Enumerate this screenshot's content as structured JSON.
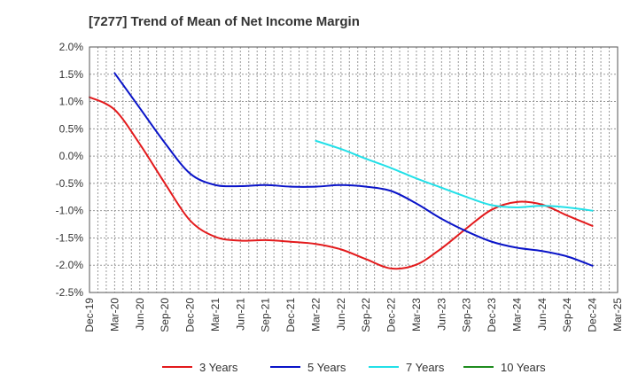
{
  "chart_data": {
    "type": "line",
    "title": "[7277]  Trend of Mean of Net Income Margin",
    "xlabel": "",
    "ylabel": "",
    "y_unit": "%",
    "ylim": [
      -2.5,
      2.0
    ],
    "y_ticks": [
      "2.0%",
      "1.5%",
      "1.0%",
      "0.5%",
      "0.0%",
      "-0.5%",
      "-1.0%",
      "-1.5%",
      "-2.0%",
      "-2.5%"
    ],
    "x_ticks": [
      "Dec-19",
      "Mar-20",
      "Jun-20",
      "Sep-20",
      "Dec-20",
      "Mar-21",
      "Jun-21",
      "Sep-21",
      "Dec-21",
      "Mar-22",
      "Jun-22",
      "Sep-22",
      "Dec-22",
      "Mar-23",
      "Jun-23",
      "Sep-23",
      "Dec-23",
      "Mar-24",
      "Jun-24",
      "Sep-24",
      "Dec-24",
      "Mar-25"
    ],
    "grid": true,
    "legend_position": "bottom",
    "series": [
      {
        "name": "3 Years",
        "color": "#e31a1c",
        "x": [
          "Dec-19",
          "Mar-20",
          "Jun-20",
          "Sep-20",
          "Dec-20",
          "Mar-21",
          "Jun-21",
          "Sep-21",
          "Dec-21",
          "Mar-22",
          "Jun-22",
          "Sep-22",
          "Dec-22",
          "Mar-23",
          "Jun-23",
          "Sep-23",
          "Dec-23",
          "Mar-24",
          "Jun-24",
          "Sep-24",
          "Dec-24"
        ],
        "values": [
          1.08,
          0.85,
          0.22,
          -0.5,
          -1.18,
          -1.48,
          -1.55,
          -1.54,
          -1.57,
          -1.61,
          -1.71,
          -1.89,
          -2.06,
          -1.99,
          -1.69,
          -1.32,
          -0.98,
          -0.84,
          -0.89,
          -1.09,
          -1.28
        ]
      },
      {
        "name": "5 Years",
        "color": "#0a14c8",
        "x": [
          "Mar-20",
          "Jun-20",
          "Sep-20",
          "Dec-20",
          "Mar-21",
          "Jun-21",
          "Sep-21",
          "Dec-21",
          "Mar-22",
          "Jun-22",
          "Sep-22",
          "Dec-22",
          "Mar-23",
          "Jun-23",
          "Sep-23",
          "Dec-23",
          "Mar-24",
          "Jun-24",
          "Sep-24",
          "Dec-24"
        ],
        "values": [
          1.52,
          0.88,
          0.24,
          -0.32,
          -0.53,
          -0.55,
          -0.53,
          -0.56,
          -0.56,
          -0.53,
          -0.56,
          -0.64,
          -0.87,
          -1.15,
          -1.38,
          -1.57,
          -1.68,
          -1.74,
          -1.84,
          -2.01
        ]
      },
      {
        "name": "7 Years",
        "color": "#22e0e8",
        "x": [
          "Mar-22",
          "Jun-22",
          "Sep-22",
          "Dec-22",
          "Mar-23",
          "Jun-23",
          "Sep-23",
          "Dec-23",
          "Mar-24",
          "Jun-24",
          "Sep-24",
          "Dec-24"
        ],
        "values": [
          0.28,
          0.13,
          -0.05,
          -0.22,
          -0.41,
          -0.58,
          -0.75,
          -0.9,
          -0.94,
          -0.91,
          -0.94,
          -1.0
        ]
      },
      {
        "name": "10 Years",
        "color": "#1e8c1e",
        "x": [],
        "values": []
      }
    ]
  }
}
